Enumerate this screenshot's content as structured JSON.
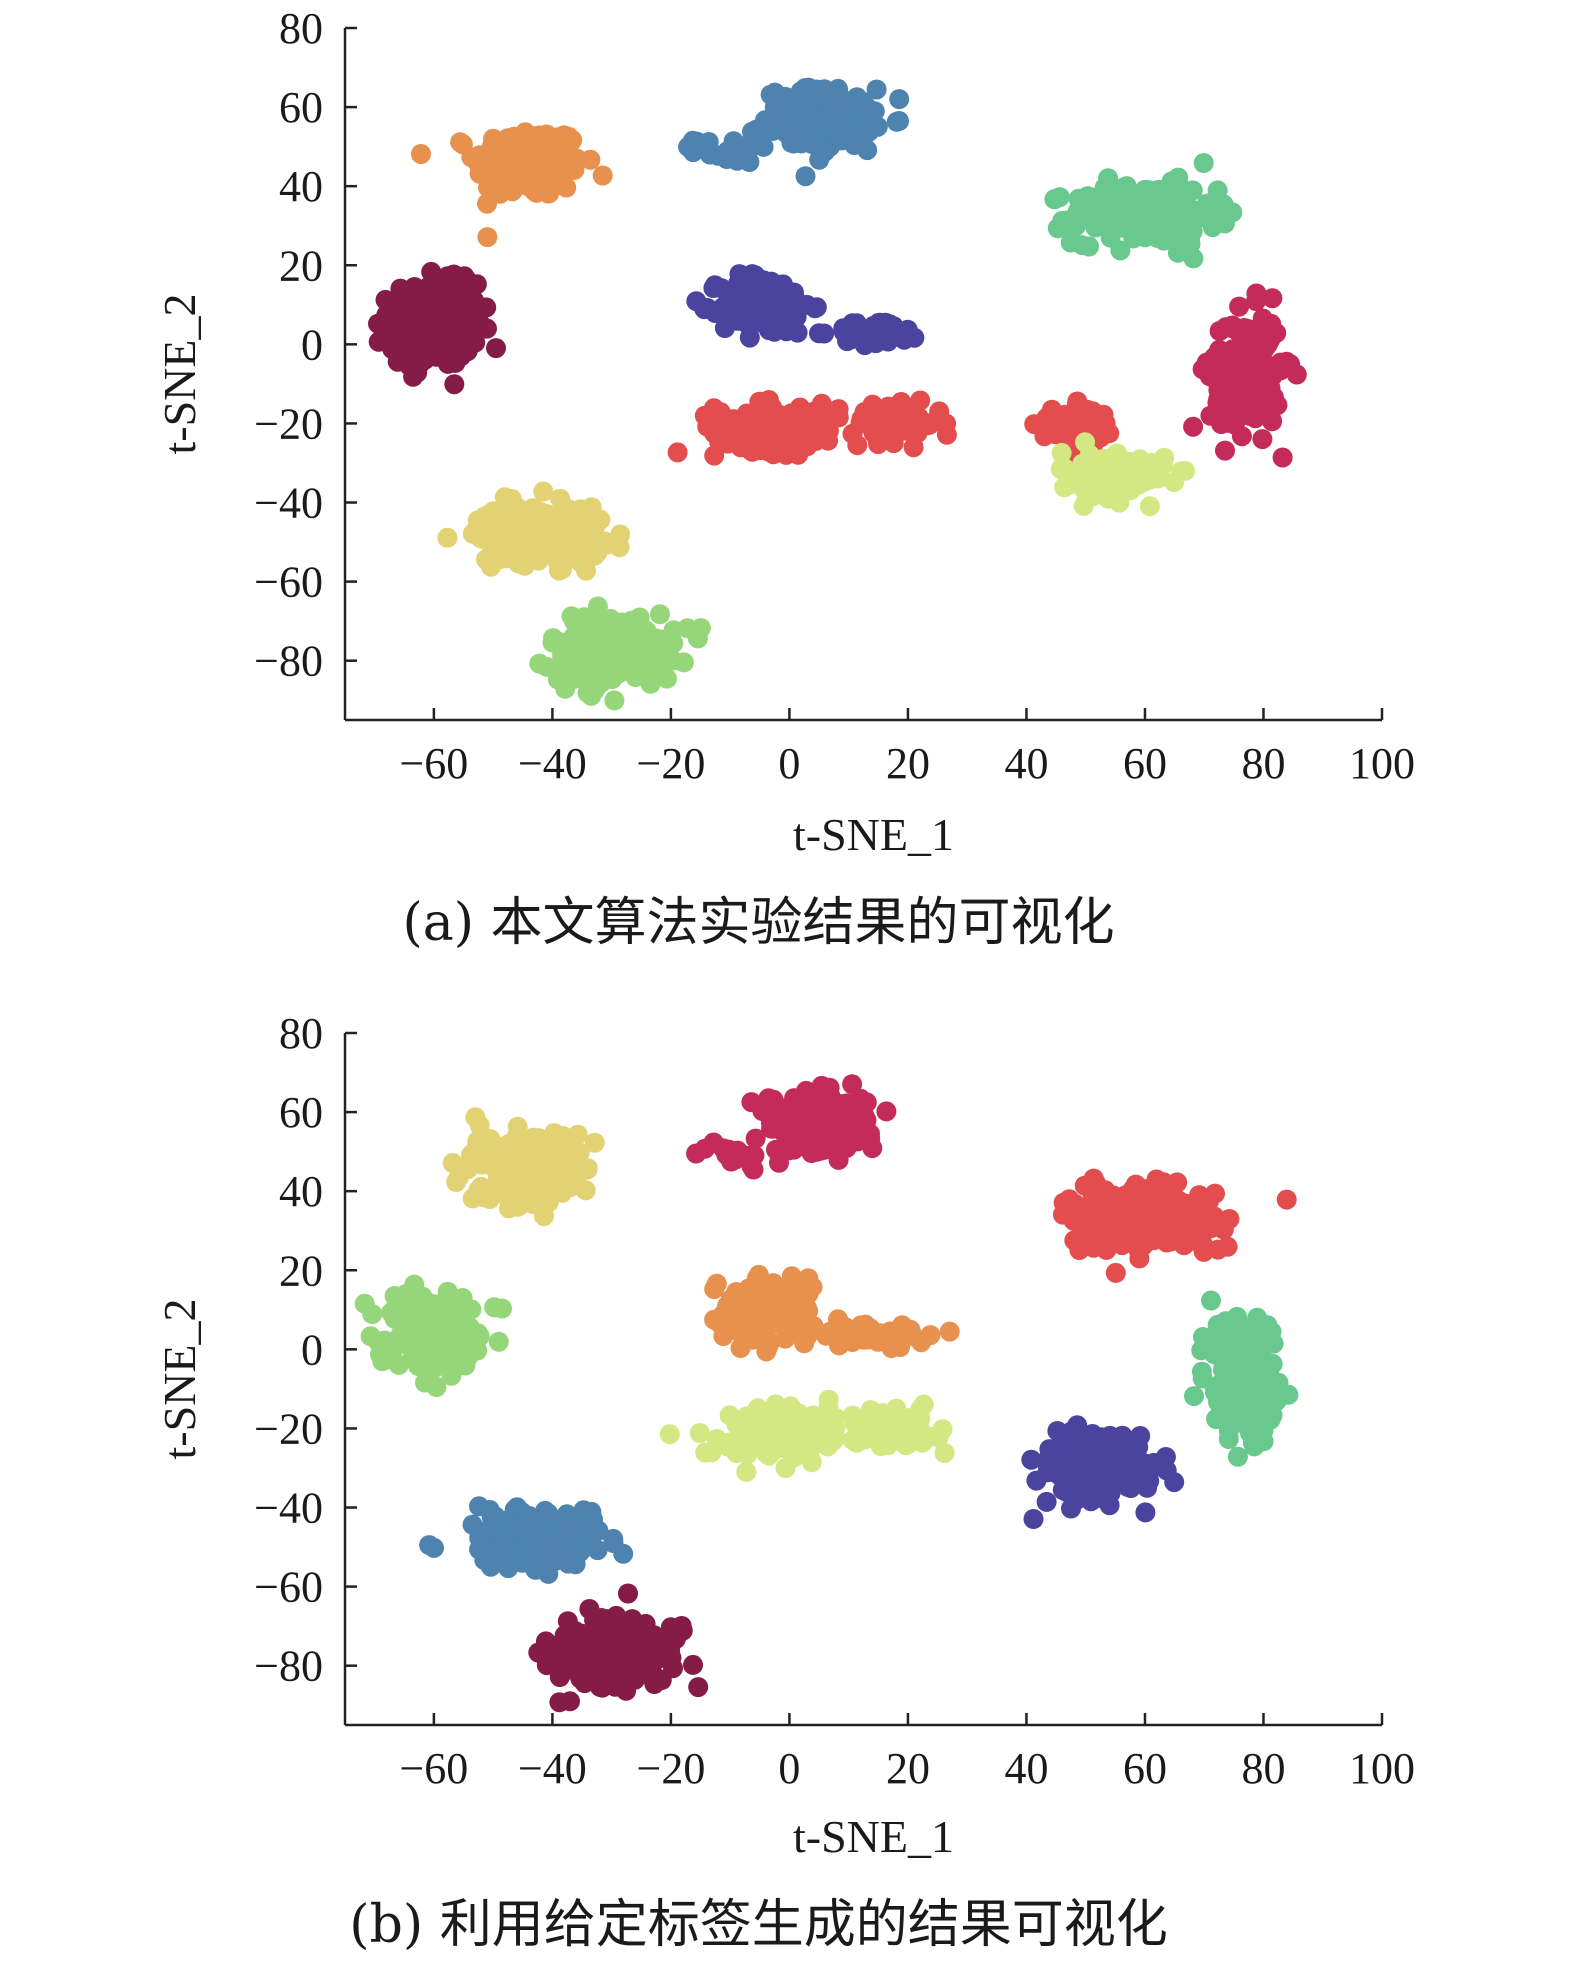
{
  "chart_data": [
    {
      "type": "scatter",
      "caption": "(a) 本文算法实验结果的可视化",
      "xlabel": "t-SNE_1",
      "ylabel": "t-SNE_2",
      "xlim": [
        -75,
        100
      ],
      "ylim": [
        -95,
        80
      ],
      "xticks": [
        -60,
        -40,
        -20,
        0,
        20,
        40,
        60,
        80,
        100
      ],
      "yticks": [
        80,
        60,
        40,
        20,
        0,
        -20,
        -40,
        -60,
        -80
      ],
      "xtick_labels": [
        "−60",
        "−40",
        "−20",
        "0",
        "20",
        "40",
        "60",
        "80",
        "100"
      ],
      "ytick_labels": [
        "80",
        "60",
        "40",
        "20",
        "0",
        "−20",
        "−40",
        "−60",
        "−80"
      ],
      "grid": false,
      "series": [
        {
          "color": "#E8904E",
          "clusters": [
            {
              "cx": -44,
              "cy": 46,
              "sx": 6,
              "sy": 6,
              "n": 220
            }
          ]
        },
        {
          "color": "#841C47",
          "clusters": [
            {
              "cx": -60,
              "cy": 5,
              "sx": 5,
              "sy": 7,
              "n": 220
            }
          ]
        },
        {
          "color": "#4D83AE",
          "clusters": [
            {
              "cx": 5,
              "cy": 57,
              "sx": 6,
              "sy": 5,
              "n": 200
            },
            {
              "cx": -10,
              "cy": 49,
              "sx": 4,
              "sy": 2,
              "n": 20
            }
          ]
        },
        {
          "color": "#68C88E",
          "clusters": [
            {
              "cx": 60,
              "cy": 33,
              "sx": 8,
              "sy": 5,
              "n": 240
            }
          ]
        },
        {
          "color": "#4B449E",
          "clusters": [
            {
              "cx": -4,
              "cy": 10,
              "sx": 5,
              "sy": 5,
              "n": 160
            },
            {
              "cx": 15,
              "cy": 3,
              "sx": 5,
              "sy": 2,
              "n": 50
            }
          ]
        },
        {
          "color": "#E34D4D",
          "clusters": [
            {
              "cx": -2,
              "cy": -21,
              "sx": 7,
              "sy": 4,
              "n": 170
            },
            {
              "cx": 18,
              "cy": -20,
              "sx": 5,
              "sy": 3,
              "n": 80
            },
            {
              "cx": 48,
              "cy": -22,
              "sx": 4,
              "sy": 4,
              "n": 70
            }
          ]
        },
        {
          "color": "#C42A5A",
          "clusters": [
            {
              "cx": 77,
              "cy": -7,
              "sx": 4,
              "sy": 10,
              "n": 170
            }
          ]
        },
        {
          "color": "#E2D274",
          "clusters": [
            {
              "cx": -42,
              "cy": -48,
              "sx": 7,
              "sy": 5,
              "n": 210
            }
          ]
        },
        {
          "color": "#D3E882",
          "clusters": [
            {
              "cx": 55,
              "cy": -33,
              "sx": 6,
              "sy": 4,
              "n": 120
            }
          ]
        },
        {
          "color": "#96D67A",
          "clusters": [
            {
              "cx": -30,
              "cy": -77,
              "sx": 7,
              "sy": 6,
              "n": 210
            }
          ]
        }
      ]
    },
    {
      "type": "scatter",
      "caption": "(b) 利用给定标签生成的结果可视化",
      "xlabel": "t-SNE_1",
      "ylabel": "t-SNE_2",
      "xlim": [
        -75,
        100
      ],
      "ylim": [
        -95,
        80
      ],
      "xticks": [
        -60,
        -40,
        -20,
        0,
        20,
        40,
        60,
        80,
        100
      ],
      "yticks": [
        80,
        60,
        40,
        20,
        0,
        -20,
        -40,
        -60,
        -80
      ],
      "xtick_labels": [
        "−60",
        "−40",
        "−20",
        "0",
        "20",
        "40",
        "60",
        "80",
        "100"
      ],
      "ytick_labels": [
        "80",
        "60",
        "40",
        "20",
        "0",
        "−20",
        "−40",
        "−60",
        "−80"
      ],
      "grid": false,
      "series": [
        {
          "color": "#E2D274",
          "clusters": [
            {
              "cx": -44,
              "cy": 46,
              "sx": 6,
              "sy": 6,
              "n": 220
            }
          ]
        },
        {
          "color": "#96D67A",
          "clusters": [
            {
              "cx": -60,
              "cy": 5,
              "sx": 5,
              "sy": 7,
              "n": 220
            }
          ]
        },
        {
          "color": "#C42A5A",
          "clusters": [
            {
              "cx": 5,
              "cy": 57,
              "sx": 6,
              "sy": 5,
              "n": 200
            },
            {
              "cx": -10,
              "cy": 49,
              "sx": 4,
              "sy": 2,
              "n": 20
            }
          ]
        },
        {
          "color": "#E34D4D",
          "clusters": [
            {
              "cx": 60,
              "cy": 33,
              "sx": 8,
              "sy": 5,
              "n": 240
            }
          ]
        },
        {
          "color": "#E8904E",
          "clusters": [
            {
              "cx": -4,
              "cy": 10,
              "sx": 5,
              "sy": 5,
              "n": 160
            },
            {
              "cx": 15,
              "cy": 3,
              "sx": 5,
              "sy": 2,
              "n": 50
            }
          ]
        },
        {
          "color": "#D3E882",
          "clusters": [
            {
              "cx": -2,
              "cy": -21,
              "sx": 7,
              "sy": 4,
              "n": 170
            },
            {
              "cx": 18,
              "cy": -20,
              "sx": 5,
              "sy": 3,
              "n": 80
            }
          ]
        },
        {
          "color": "#68C88E",
          "clusters": [
            {
              "cx": 77,
              "cy": -7,
              "sx": 4,
              "sy": 10,
              "n": 170
            }
          ]
        },
        {
          "color": "#4D83AE",
          "clusters": [
            {
              "cx": -42,
              "cy": -48,
              "sx": 7,
              "sy": 5,
              "n": 210
            }
          ]
        },
        {
          "color": "#4B449E",
          "clusters": [
            {
              "cx": 52,
              "cy": -30,
              "sx": 6,
              "sy": 5,
              "n": 190
            }
          ]
        },
        {
          "color": "#841C47",
          "clusters": [
            {
              "cx": -30,
              "cy": -77,
              "sx": 7,
              "sy": 6,
              "n": 210
            }
          ]
        }
      ]
    }
  ]
}
